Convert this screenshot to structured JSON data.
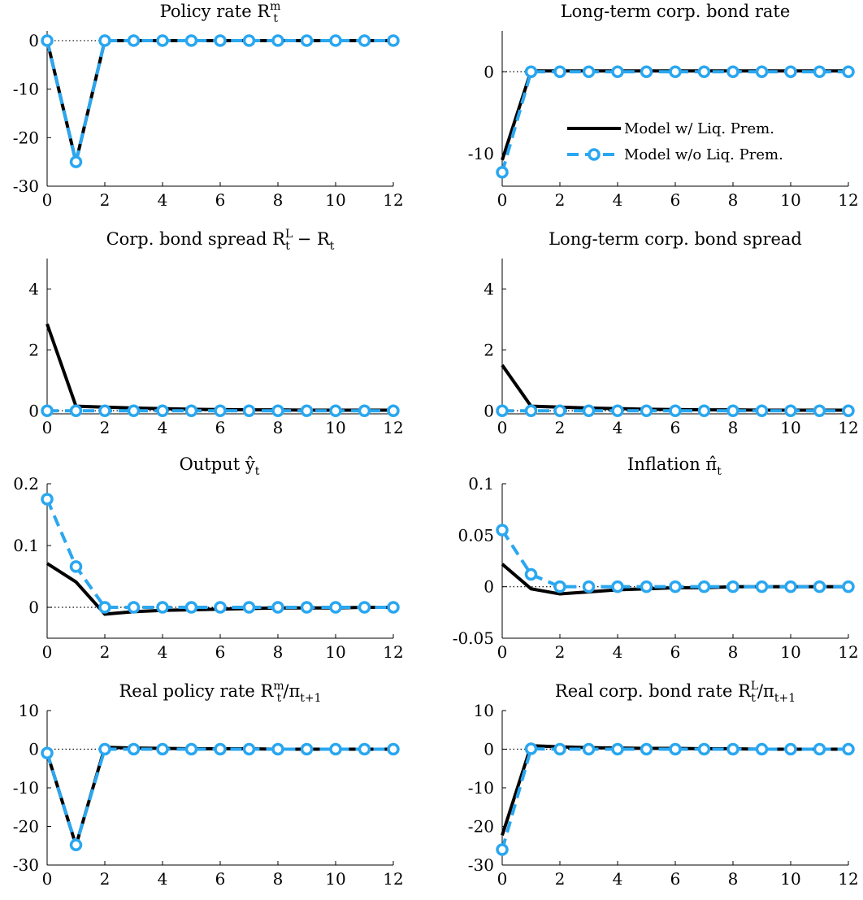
{
  "legend": {
    "with_lp": "Model w/ Liq. Prem.",
    "without_lp": "Model w/o Liq. Prem."
  },
  "colors": {
    "with_lp": "#000000",
    "without_lp": "#2aa7f0",
    "zero_line": "#000000"
  },
  "chart_data": [
    {
      "type": "line",
      "title": "Policy rate R_t^m",
      "title_parts": {
        "base": "Policy rate R",
        "sub": "t",
        "sup": "m",
        "tail": ""
      },
      "x": [
        0,
        1,
        2,
        3,
        4,
        5,
        6,
        7,
        8,
        9,
        10,
        11,
        12
      ],
      "xlim": [
        0,
        12
      ],
      "ylim": [
        -30,
        2
      ],
      "xticks": [
        0,
        2,
        4,
        6,
        8,
        10,
        12
      ],
      "yticks": [
        0,
        -10,
        -20,
        -30
      ],
      "ytick_labels": [
        "0",
        "-10",
        "-20",
        "-30"
      ],
      "legend_position": "none",
      "series": [
        {
          "name": "Model w/ Liq. Prem.",
          "values": [
            0,
            -25,
            0,
            0,
            0,
            0,
            0,
            0,
            0,
            0,
            0,
            0,
            0
          ]
        },
        {
          "name": "Model w/o Liq. Prem.",
          "values": [
            0,
            -25,
            0,
            0,
            0,
            0,
            0,
            0,
            0,
            0,
            0,
            0,
            0
          ]
        }
      ]
    },
    {
      "type": "line",
      "title": "Long-term corp. bond rate",
      "title_parts": {
        "base": "Long-term corp. bond rate",
        "sub": "",
        "sup": "",
        "tail": ""
      },
      "x": [
        0,
        1,
        2,
        3,
        4,
        5,
        6,
        7,
        8,
        9,
        10,
        11,
        12
      ],
      "xlim": [
        0,
        12
      ],
      "ylim": [
        -14,
        5
      ],
      "xticks": [
        0,
        2,
        4,
        6,
        8,
        10,
        12
      ],
      "yticks": [
        0,
        -10
      ],
      "ytick_labels": [
        "0",
        "-10"
      ],
      "legend_position": "right",
      "series": [
        {
          "name": "Model w/ Liq. Prem.",
          "values": [
            -10.8,
            0.1,
            0.1,
            0.1,
            0.1,
            0.1,
            0.1,
            0.1,
            0.1,
            0.1,
            0.1,
            0.1,
            0.1
          ]
        },
        {
          "name": "Model w/o Liq. Prem.",
          "values": [
            -12.3,
            0,
            0,
            0,
            0,
            0,
            0,
            0,
            0,
            0,
            0,
            0,
            0
          ]
        }
      ]
    },
    {
      "type": "line",
      "title": "Corp. bond spread R_t^L − R_t",
      "title_parts": {
        "base": "Corp. bond spread R",
        "sub": "t",
        "sup": "L",
        "tail": " − R",
        "tail_sub": "t"
      },
      "x": [
        0,
        1,
        2,
        3,
        4,
        5,
        6,
        7,
        8,
        9,
        10,
        11,
        12
      ],
      "xlim": [
        0,
        12
      ],
      "ylim": [
        -0.1,
        5
      ],
      "xticks": [
        0,
        2,
        4,
        6,
        8,
        10,
        12
      ],
      "yticks": [
        0,
        2,
        4
      ],
      "ytick_labels": [
        "0",
        "2",
        "4"
      ],
      "legend_position": "none",
      "series": [
        {
          "name": "Model w/ Liq. Prem.",
          "values": [
            2.85,
            0.15,
            0.12,
            0.09,
            0.07,
            0.05,
            0.04,
            0.03,
            0.03,
            0.02,
            0.02,
            0.02,
            0.02
          ]
        },
        {
          "name": "Model w/o Liq. Prem.",
          "values": [
            0,
            0,
            0,
            0,
            0,
            0,
            0,
            0,
            0,
            0,
            0,
            0,
            0
          ]
        }
      ]
    },
    {
      "type": "line",
      "title": "Long-term corp. bond spread",
      "title_parts": {
        "base": "Long-term corp. bond spread",
        "sub": "",
        "sup": "",
        "tail": ""
      },
      "x": [
        0,
        1,
        2,
        3,
        4,
        5,
        6,
        7,
        8,
        9,
        10,
        11,
        12
      ],
      "xlim": [
        0,
        12
      ],
      "ylim": [
        -0.1,
        5
      ],
      "xticks": [
        0,
        2,
        4,
        6,
        8,
        10,
        12
      ],
      "yticks": [
        0,
        2,
        4
      ],
      "ytick_labels": [
        "0",
        "2",
        "4"
      ],
      "legend_position": "none",
      "series": [
        {
          "name": "Model w/ Liq. Prem.",
          "values": [
            1.5,
            0.15,
            0.12,
            0.09,
            0.07,
            0.05,
            0.04,
            0.03,
            0.03,
            0.02,
            0.02,
            0.02,
            0.02
          ]
        },
        {
          "name": "Model w/o Liq. Prem.",
          "values": [
            0,
            0,
            0,
            0,
            0,
            0,
            0,
            0,
            0,
            0,
            0,
            0,
            0
          ]
        }
      ]
    },
    {
      "type": "line",
      "title": "Output ŷ_t",
      "title_parts": {
        "base": "Output ŷ",
        "sub": "t",
        "sup": "",
        "tail": ""
      },
      "x": [
        0,
        1,
        2,
        3,
        4,
        5,
        6,
        7,
        8,
        9,
        10,
        11,
        12
      ],
      "xlim": [
        0,
        12
      ],
      "ylim": [
        -0.05,
        0.2
      ],
      "xticks": [
        0,
        2,
        4,
        6,
        8,
        10,
        12
      ],
      "yticks": [
        0,
        0.1,
        0.2
      ],
      "ytick_labels": [
        "0",
        "0.1",
        "0.2"
      ],
      "legend_position": "none",
      "series": [
        {
          "name": "Model w/ Liq. Prem.",
          "values": [
            0.071,
            0.041,
            -0.011,
            -0.007,
            -0.005,
            -0.004,
            -0.003,
            -0.002,
            -0.001,
            -0.001,
            -0.001,
            0,
            0
          ]
        },
        {
          "name": "Model w/o Liq. Prem.",
          "values": [
            0.175,
            0.066,
            0,
            0,
            0,
            0,
            0,
            0,
            0,
            0,
            0,
            0,
            0
          ]
        }
      ]
    },
    {
      "type": "line",
      "title": "Inflation π̂_t",
      "title_parts": {
        "base": "Inflation π̂",
        "sub": "t",
        "sup": "",
        "tail": ""
      },
      "x": [
        0,
        1,
        2,
        3,
        4,
        5,
        6,
        7,
        8,
        9,
        10,
        11,
        12
      ],
      "xlim": [
        0,
        12
      ],
      "ylim": [
        -0.05,
        0.1
      ],
      "xticks": [
        0,
        2,
        4,
        6,
        8,
        10,
        12
      ],
      "yticks": [
        0.1,
        0.05,
        0,
        -0.05
      ],
      "ytick_labels": [
        "0.1",
        "0.05",
        "0",
        "-0.05"
      ],
      "legend_position": "none",
      "series": [
        {
          "name": "Model w/ Liq. Prem.",
          "values": [
            0.022,
            -0.002,
            -0.007,
            -0.005,
            -0.003,
            -0.002,
            -0.001,
            -0.001,
            0,
            0,
            0,
            0,
            0
          ]
        },
        {
          "name": "Model w/o Liq. Prem.",
          "values": [
            0.055,
            0.012,
            0,
            0,
            0,
            0,
            0,
            0,
            0,
            0,
            0,
            0,
            0
          ]
        }
      ]
    },
    {
      "type": "line",
      "title": "Real policy rate R_t^m/π_{t+1}",
      "title_parts": {
        "base": "Real policy rate R",
        "sub": "t",
        "sup": "m",
        "tail": "/π",
        "tail_sub": "t+1"
      },
      "x": [
        0,
        1,
        2,
        3,
        4,
        5,
        6,
        7,
        8,
        9,
        10,
        11,
        12
      ],
      "xlim": [
        0,
        12
      ],
      "ylim": [
        -30,
        10
      ],
      "xticks": [
        0,
        2,
        4,
        6,
        8,
        10,
        12
      ],
      "yticks": [
        10,
        0,
        -10,
        -20,
        -30
      ],
      "ytick_labels": [
        "10",
        "0",
        "-10",
        "-20",
        "-30"
      ],
      "legend_position": "none",
      "series": [
        {
          "name": "Model w/ Liq. Prem.",
          "values": [
            -1.0,
            -24.9,
            0.5,
            0.3,
            0.2,
            0.1,
            0.1,
            0.1,
            0,
            0,
            0,
            0,
            0
          ]
        },
        {
          "name": "Model w/o Liq. Prem.",
          "values": [
            -1.0,
            -24.8,
            0,
            0,
            0,
            0,
            0,
            0,
            0,
            0,
            0,
            0,
            0
          ]
        }
      ]
    },
    {
      "type": "line",
      "title": "Real corp. bond rate R_t^L/π_{t+1}",
      "title_parts": {
        "base": "Real corp. bond rate R",
        "sub": "t",
        "sup": "L",
        "tail": "/π",
        "tail_sub": "t+1"
      },
      "x": [
        0,
        1,
        2,
        3,
        4,
        5,
        6,
        7,
        8,
        9,
        10,
        11,
        12
      ],
      "xlim": [
        0,
        12
      ],
      "ylim": [
        -30,
        10
      ],
      "xticks": [
        0,
        2,
        4,
        6,
        8,
        10,
        12
      ],
      "yticks": [
        10,
        0,
        -10,
        -20,
        -30
      ],
      "ytick_labels": [
        "10",
        "0",
        "-10",
        "-20",
        "-30"
      ],
      "legend_position": "none",
      "series": [
        {
          "name": "Model w/ Liq. Prem.",
          "values": [
            -22.3,
            0.9,
            0.6,
            0.4,
            0.3,
            0.2,
            0.2,
            0.1,
            0.1,
            0,
            0,
            0,
            0
          ]
        },
        {
          "name": "Model w/o Liq. Prem.",
          "values": [
            -26.0,
            0.1,
            0,
            0,
            0,
            0,
            0,
            0,
            0,
            0,
            0,
            0,
            0
          ]
        }
      ]
    }
  ]
}
